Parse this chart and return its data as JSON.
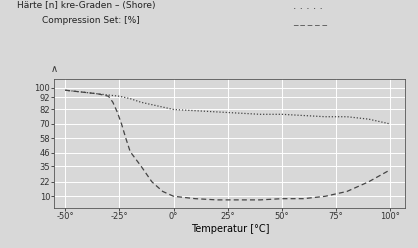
{
  "title_line1": "Härte [n] kre-Graden – (Shore)",
  "title_line2": "Compression Set: [%]",
  "xlabel": "Temperatur [°C]",
  "ylabel_arrow": "∧",
  "x_ticks": [
    -50,
    -25,
    0,
    25,
    50,
    75,
    100
  ],
  "x_tick_labels": [
    "-50°",
    "-25°",
    "0°",
    "25°",
    "50°",
    "75°",
    "100°"
  ],
  "y_ticks": [
    10,
    22,
    35,
    46,
    58,
    70,
    82,
    92,
    100
  ],
  "ylim": [
    0,
    107
  ],
  "xlim": [
    -55,
    107
  ],
  "background_color": "#d8d8d8",
  "hardness_x": [
    -50,
    -45,
    -40,
    -35,
    -30,
    -25,
    -20,
    -15,
    -10,
    -5,
    0,
    10,
    20,
    30,
    40,
    50,
    60,
    70,
    80,
    90,
    100
  ],
  "hardness_y": [
    98,
    97,
    96,
    95,
    94,
    93,
    91,
    88,
    86,
    84,
    82,
    81,
    80,
    79,
    78,
    78,
    77,
    76,
    76,
    74,
    70
  ],
  "compression_x": [
    -50,
    -45,
    -40,
    -35,
    -30,
    -28,
    -26,
    -24,
    -22,
    -20,
    -15,
    -10,
    -5,
    0,
    10,
    20,
    30,
    40,
    50,
    60,
    70,
    80,
    90,
    100
  ],
  "compression_y": [
    98,
    97,
    96,
    95,
    93,
    88,
    80,
    70,
    58,
    47,
    35,
    22,
    14,
    10,
    8,
    7,
    7,
    7,
    8,
    8,
    10,
    14,
    22,
    32
  ],
  "hardness_color": "#444444",
  "compression_color": "#444444",
  "grid_color": "#ffffff",
  "title_fontsize": 6.5,
  "axis_fontsize": 7,
  "tick_fontsize": 6
}
